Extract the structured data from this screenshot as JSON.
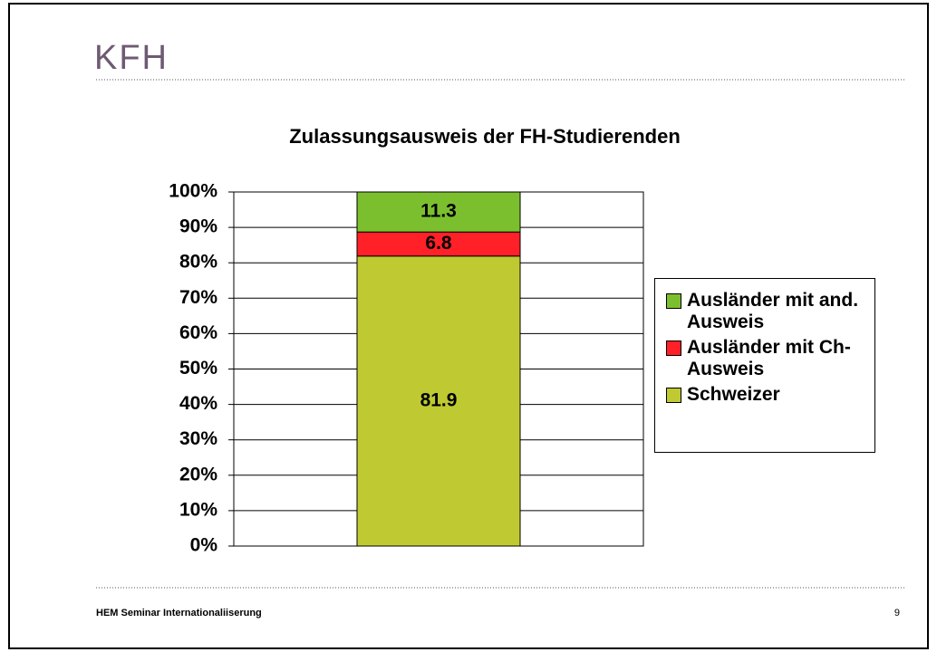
{
  "header": {
    "logo": "KFH"
  },
  "chart_data": {
    "type": "stacked_bar",
    "title": "Zulassungsausweis der FH-Studierenden",
    "categories": [
      null
    ],
    "series": [
      {
        "name": "Schweizer",
        "color": "#bfca32",
        "values": [
          81.9
        ]
      },
      {
        "name": "Ausländer mit Ch-Ausweis",
        "color": "#ff2028",
        "values": [
          6.8
        ]
      },
      {
        "name": "Ausländer mit and. Ausweis",
        "color": "#7cbf2e",
        "values": [
          11.3
        ]
      }
    ],
    "ylim": [
      0,
      100
    ],
    "yticks": [
      {
        "value": 0,
        "label": "0%"
      },
      {
        "value": 10,
        "label": "10%"
      },
      {
        "value": 20,
        "label": "20%"
      },
      {
        "value": 30,
        "label": "30%"
      },
      {
        "value": 40,
        "label": "40%"
      },
      {
        "value": 50,
        "label": "50%"
      },
      {
        "value": 60,
        "label": "60%"
      },
      {
        "value": 70,
        "label": "70%"
      },
      {
        "value": 80,
        "label": "80%"
      },
      {
        "value": 90,
        "label": "90%"
      },
      {
        "value": 100,
        "label": "100%"
      }
    ],
    "grid": true,
    "legend": "right"
  },
  "footer": {
    "text": "HEM Seminar Internationaliiserung",
    "page": "9"
  }
}
